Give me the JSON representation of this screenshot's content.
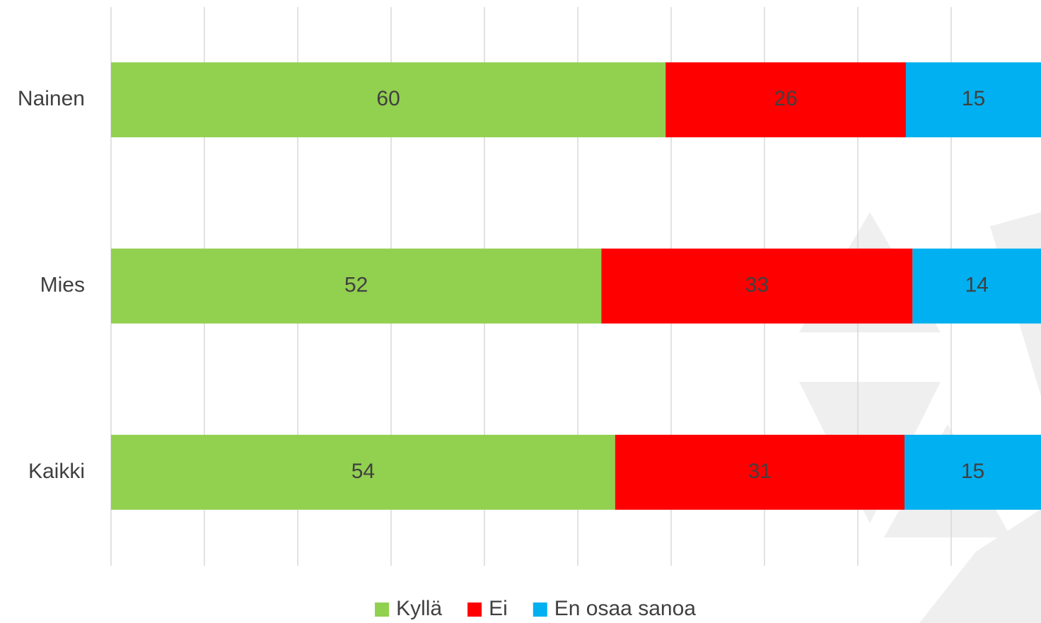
{
  "chart_data": {
    "type": "bar",
    "orientation": "horizontal",
    "stacked": "percent",
    "categories": [
      "Nainen",
      "Mies",
      "Kaikki"
    ],
    "series": [
      {
        "name": "Kyllä",
        "color": "#92d050",
        "values": [
          60,
          52,
          54
        ]
      },
      {
        "name": "Ei",
        "color": "#ff0000",
        "values": [
          26,
          33,
          31
        ]
      },
      {
        "name": "En osaa sanoa",
        "color": "#00b0f0",
        "values": [
          15,
          14,
          15
        ]
      }
    ],
    "xlim": [
      0,
      100
    ],
    "xticks": [
      0,
      10,
      20,
      30,
      40,
      50,
      60,
      70,
      80,
      90,
      100
    ],
    "grid": true,
    "legend": "bottom"
  }
}
